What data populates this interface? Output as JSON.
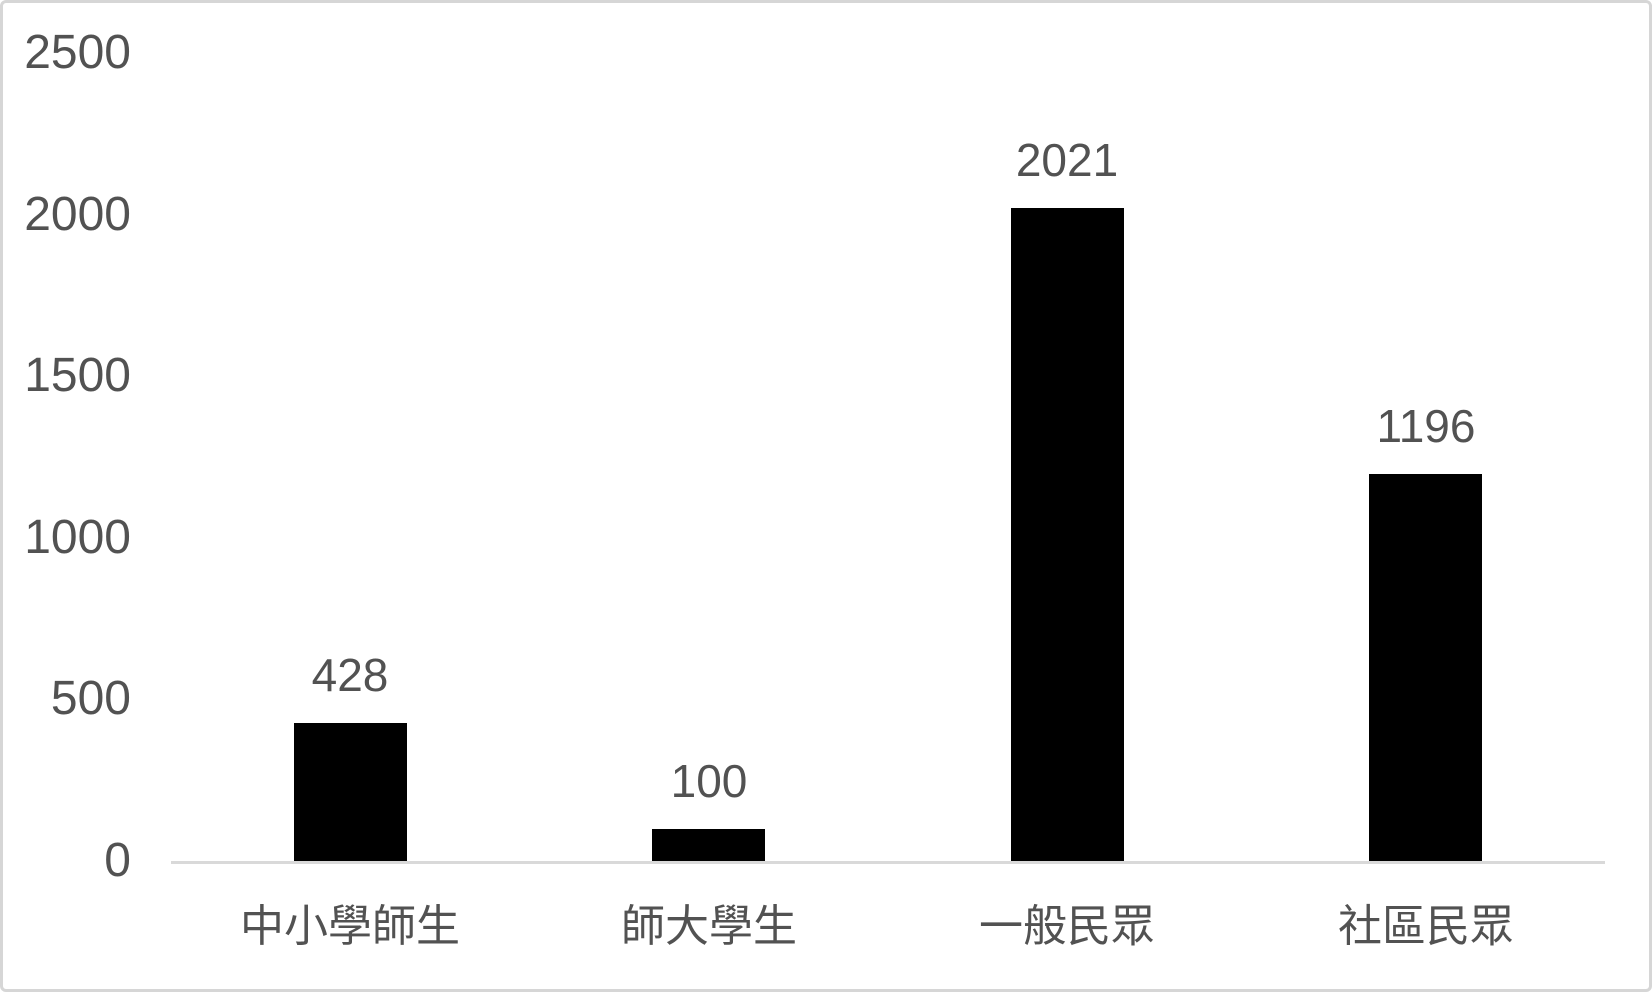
{
  "chart_data": {
    "type": "bar",
    "categories": [
      "中小學師生",
      "師大學生",
      "一般民眾",
      "社區民眾"
    ],
    "values": [
      428,
      100,
      2021,
      1196
    ],
    "data_labels": [
      "428",
      "100",
      "2021",
      "1196"
    ],
    "title": "",
    "xlabel": "",
    "ylabel": "",
    "ylim": [
      0,
      2500
    ],
    "yticks": [
      0,
      500,
      1000,
      1500,
      2000,
      2500
    ],
    "grid": false,
    "legend": "none",
    "bar_color": "#000000",
    "axis_line_color": "#d9d9d9",
    "text_color": "#525252",
    "frame_border_color": "#d6d6d6",
    "background_color": "#ffffff"
  }
}
